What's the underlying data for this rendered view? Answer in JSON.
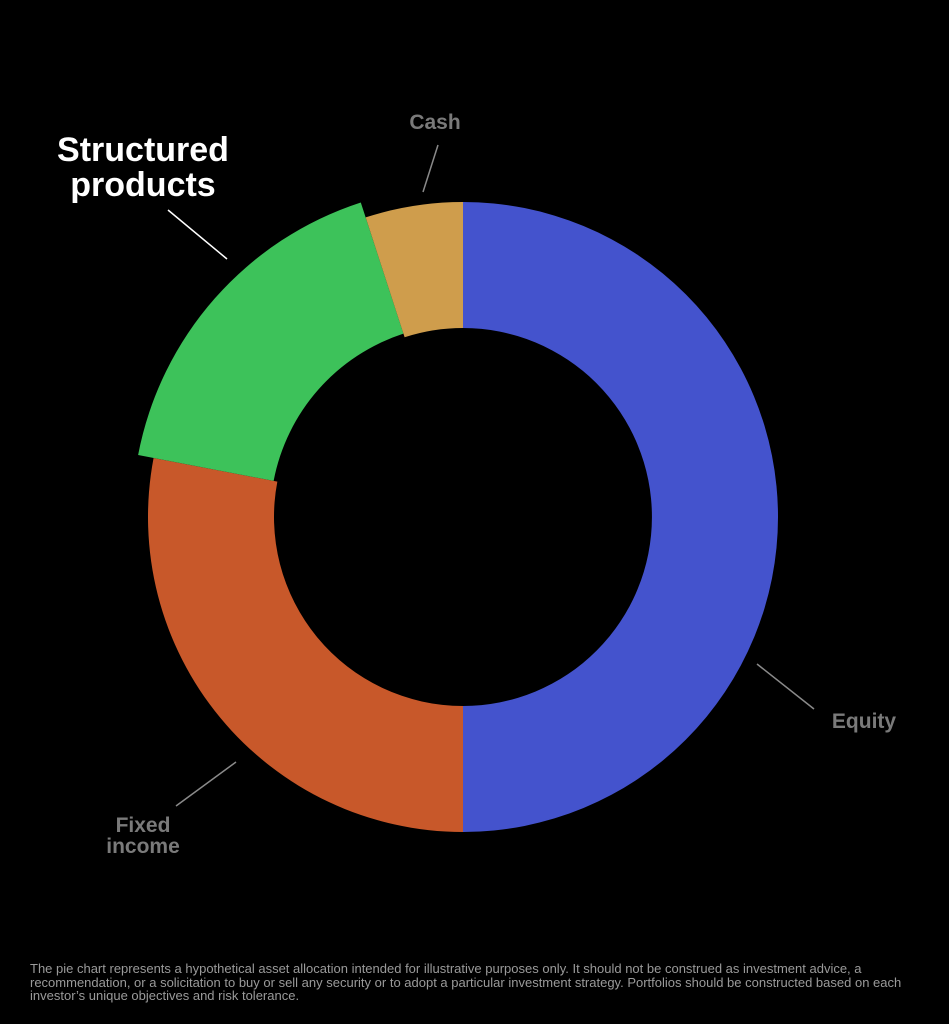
{
  "chart_data": {
    "type": "pie",
    "donut": true,
    "slices": [
      {
        "label": "Equity",
        "value": 50,
        "color": "#4453cd",
        "highlight": false
      },
      {
        "label": "Fixed income",
        "value": 28,
        "color": "#c8582a",
        "highlight": false
      },
      {
        "label": "Structured products",
        "value": 17,
        "color": "#3dc25a",
        "highlight": true
      },
      {
        "label": "Cash",
        "value": 5,
        "color": "#cf9d4c",
        "highlight": false
      }
    ],
    "label_colors": {
      "default": "#7a7a7a",
      "highlight": "#ffffff"
    }
  },
  "footnote": "The pie chart represents a hypothetical asset allocation intended for illustrative purposes only. It should not be construed as investment advice, a recommendation, or a solicitation to buy or sell any security or to adopt a particular investment strategy. Portfolios should be constructed based on each investor’s unique objectives and risk tolerance."
}
